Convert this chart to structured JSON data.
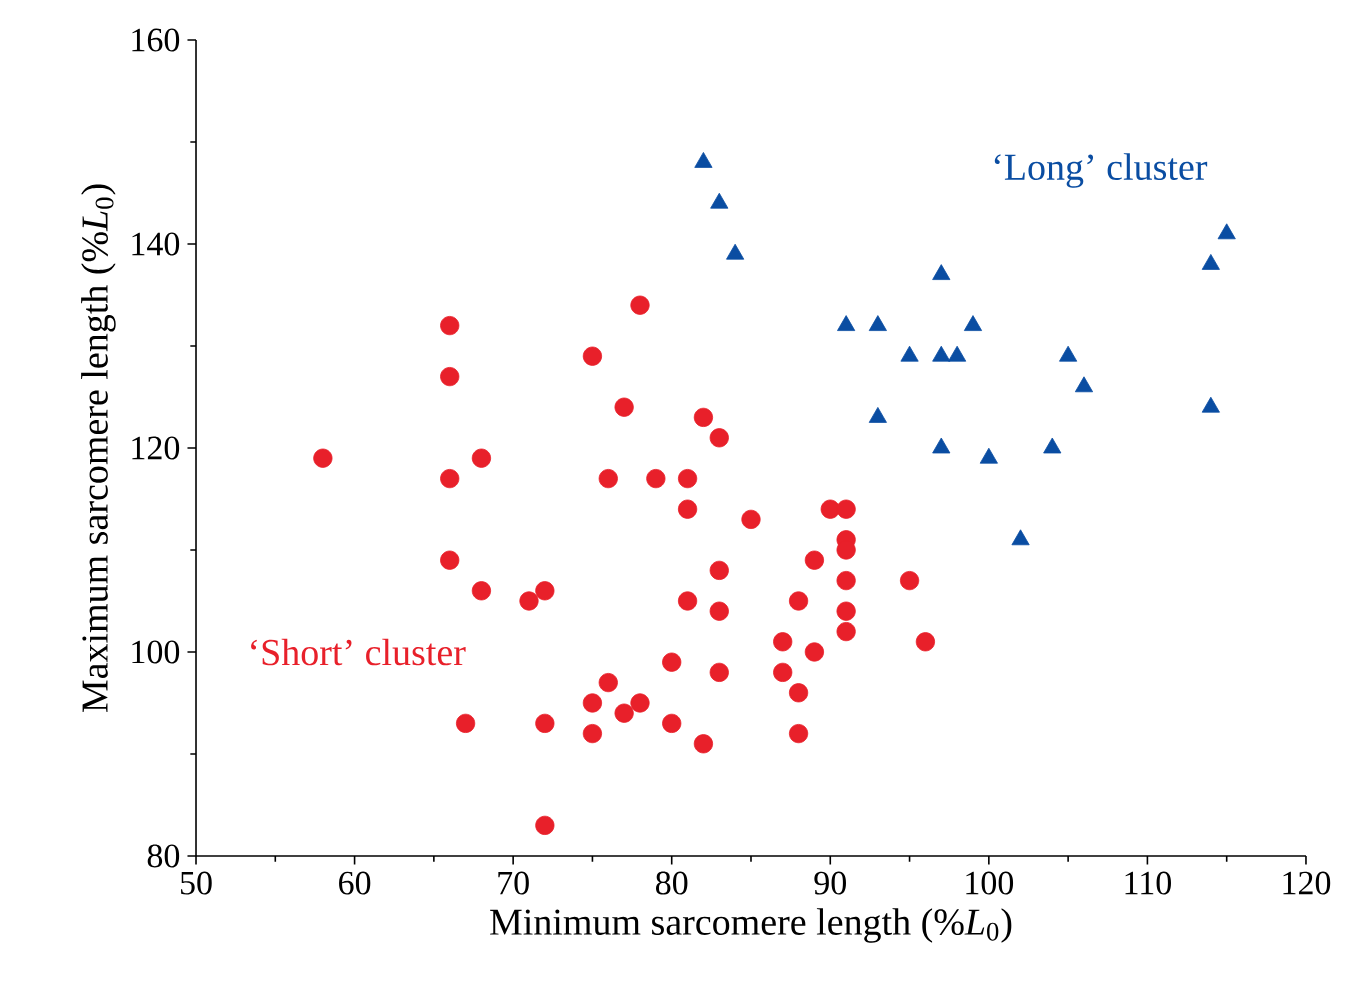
{
  "chart_data": {
    "type": "scatter",
    "xlabel": "Minimum sarcomere length (%*L*$_{0}$)",
    "ylabel": "Maximum sarcomere length (%*L*$_{0}$)",
    "xlim": [
      50,
      120
    ],
    "xticks": [
      50,
      60,
      70,
      80,
      90,
      100,
      110,
      120
    ],
    "ylim": [
      80,
      160
    ],
    "yticks": [
      80,
      100,
      120,
      140,
      160
    ],
    "grid": false,
    "series": [
      {
        "name": "‘Short’ cluster",
        "color": "#e8202a",
        "marker": "circle",
        "x": [
          58,
          66,
          66,
          66,
          68,
          66,
          68,
          71,
          72,
          67,
          72,
          72,
          75,
          78,
          77,
          76,
          79,
          81,
          81,
          82,
          83,
          85,
          75,
          75,
          76,
          77,
          78,
          80,
          82,
          80,
          81,
          83,
          83,
          83,
          87,
          87,
          88,
          88,
          88,
          89,
          89,
          90,
          91,
          91,
          91,
          91,
          91,
          91,
          95,
          96
        ],
        "values": [
          119,
          132,
          127,
          117,
          119,
          109,
          106,
          105,
          106,
          93,
          93,
          83,
          129,
          134,
          124,
          117,
          117,
          117,
          114,
          123,
          121,
          113,
          95,
          92,
          97,
          94,
          95,
          93,
          91,
          99,
          105,
          104,
          108,
          98,
          101,
          98,
          105,
          96,
          92,
          100,
          109,
          114,
          114,
          111,
          110,
          107,
          104,
          102,
          107,
          101
        ]
      },
      {
        "name": "‘Long’ cluster",
        "color": "#0a4da2",
        "marker": "triangle",
        "x": [
          82,
          83,
          84,
          91,
          93,
          93,
          95,
          97,
          97,
          97,
          98,
          99,
          100,
          102,
          104,
          105,
          106,
          114,
          114,
          115
        ],
        "values": [
          148,
          144,
          139,
          132,
          132,
          123,
          129,
          137,
          129,
          120,
          129,
          132,
          119,
          111,
          120,
          129,
          126,
          138,
          124,
          141
        ]
      }
    ]
  }
}
